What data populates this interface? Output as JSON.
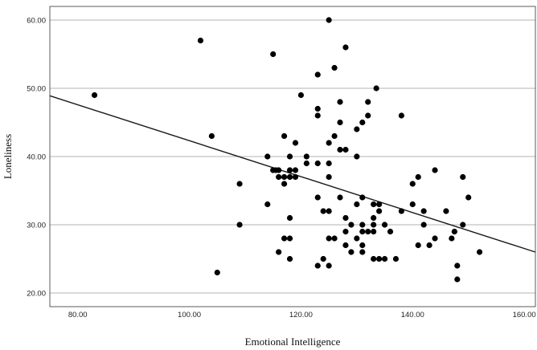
{
  "chart_data": {
    "type": "scatter",
    "title": "",
    "xlabel": "Emotional Intelligence",
    "ylabel": "Loneliness",
    "xlim": [
      75,
      162
    ],
    "ylim": [
      18,
      62
    ],
    "xticks": [
      80,
      100,
      120,
      140,
      160
    ],
    "yticks": [
      20,
      30,
      40,
      50,
      60
    ],
    "xtick_labels": [
      "80.00",
      "100.00",
      "120.00",
      "140.00",
      "160.00"
    ],
    "ytick_labels": [
      "20.00",
      "30.00",
      "40.00",
      "50.00",
      "60.00"
    ],
    "grid": "horizontal",
    "point_color": "#000000",
    "line_color": "#1a1a1a",
    "fit_line": {
      "x": [
        75,
        162
      ],
      "y": [
        48.9,
        26.0
      ]
    },
    "points": [
      {
        "x": 83,
        "y": 49
      },
      {
        "x": 102,
        "y": 57
      },
      {
        "x": 104,
        "y": 43
      },
      {
        "x": 105,
        "y": 23
      },
      {
        "x": 109,
        "y": 36
      },
      {
        "x": 109,
        "y": 30
      },
      {
        "x": 114,
        "y": 40
      },
      {
        "x": 114,
        "y": 33
      },
      {
        "x": 115,
        "y": 55
      },
      {
        "x": 115,
        "y": 38
      },
      {
        "x": 115.5,
        "y": 38
      },
      {
        "x": 116,
        "y": 38
      },
      {
        "x": 116,
        "y": 37
      },
      {
        "x": 116,
        "y": 26
      },
      {
        "x": 117,
        "y": 43
      },
      {
        "x": 117,
        "y": 37
      },
      {
        "x": 117,
        "y": 36
      },
      {
        "x": 117,
        "y": 28
      },
      {
        "x": 118,
        "y": 40
      },
      {
        "x": 118,
        "y": 38
      },
      {
        "x": 118,
        "y": 37
      },
      {
        "x": 118,
        "y": 31
      },
      {
        "x": 118,
        "y": 28
      },
      {
        "x": 118,
        "y": 25
      },
      {
        "x": 119,
        "y": 42
      },
      {
        "x": 119,
        "y": 38
      },
      {
        "x": 119,
        "y": 37
      },
      {
        "x": 120,
        "y": 49
      },
      {
        "x": 121,
        "y": 40
      },
      {
        "x": 121,
        "y": 39
      },
      {
        "x": 123,
        "y": 52
      },
      {
        "x": 123,
        "y": 47
      },
      {
        "x": 123,
        "y": 46
      },
      {
        "x": 123,
        "y": 39
      },
      {
        "x": 123,
        "y": 34
      },
      {
        "x": 123,
        "y": 24
      },
      {
        "x": 124,
        "y": 32
      },
      {
        "x": 124,
        "y": 25
      },
      {
        "x": 125,
        "y": 60
      },
      {
        "x": 125,
        "y": 42
      },
      {
        "x": 125,
        "y": 39
      },
      {
        "x": 125,
        "y": 37
      },
      {
        "x": 125,
        "y": 32
      },
      {
        "x": 125,
        "y": 28
      },
      {
        "x": 125,
        "y": 24
      },
      {
        "x": 126,
        "y": 53
      },
      {
        "x": 126,
        "y": 43
      },
      {
        "x": 126,
        "y": 28
      },
      {
        "x": 127,
        "y": 48
      },
      {
        "x": 127,
        "y": 45
      },
      {
        "x": 127,
        "y": 41
      },
      {
        "x": 127,
        "y": 34
      },
      {
        "x": 128,
        "y": 56
      },
      {
        "x": 128,
        "y": 41
      },
      {
        "x": 128,
        "y": 31
      },
      {
        "x": 128,
        "y": 29
      },
      {
        "x": 128,
        "y": 27
      },
      {
        "x": 129,
        "y": 30
      },
      {
        "x": 129,
        "y": 26
      },
      {
        "x": 130,
        "y": 44
      },
      {
        "x": 130,
        "y": 40
      },
      {
        "x": 130,
        "y": 33
      },
      {
        "x": 130,
        "y": 28
      },
      {
        "x": 131,
        "y": 45
      },
      {
        "x": 131,
        "y": 34
      },
      {
        "x": 131,
        "y": 30
      },
      {
        "x": 131,
        "y": 29
      },
      {
        "x": 131,
        "y": 27
      },
      {
        "x": 131,
        "y": 26
      },
      {
        "x": 132,
        "y": 48
      },
      {
        "x": 132,
        "y": 46
      },
      {
        "x": 132,
        "y": 29
      },
      {
        "x": 133,
        "y": 33
      },
      {
        "x": 133,
        "y": 31
      },
      {
        "x": 133,
        "y": 30
      },
      {
        "x": 133,
        "y": 29
      },
      {
        "x": 133,
        "y": 25
      },
      {
        "x": 133.5,
        "y": 50
      },
      {
        "x": 134,
        "y": 33
      },
      {
        "x": 134,
        "y": 32
      },
      {
        "x": 134,
        "y": 25
      },
      {
        "x": 135,
        "y": 30
      },
      {
        "x": 135,
        "y": 25
      },
      {
        "x": 136,
        "y": 29
      },
      {
        "x": 137,
        "y": 25
      },
      {
        "x": 138,
        "y": 46
      },
      {
        "x": 138,
        "y": 32
      },
      {
        "x": 140,
        "y": 36
      },
      {
        "x": 140,
        "y": 33
      },
      {
        "x": 141,
        "y": 37
      },
      {
        "x": 141,
        "y": 27
      },
      {
        "x": 142,
        "y": 32
      },
      {
        "x": 142,
        "y": 30
      },
      {
        "x": 143,
        "y": 27
      },
      {
        "x": 144,
        "y": 38
      },
      {
        "x": 144,
        "y": 28
      },
      {
        "x": 146,
        "y": 32
      },
      {
        "x": 147,
        "y": 28
      },
      {
        "x": 147.5,
        "y": 29
      },
      {
        "x": 148,
        "y": 24
      },
      {
        "x": 148,
        "y": 22
      },
      {
        "x": 149,
        "y": 37
      },
      {
        "x": 149,
        "y": 30
      },
      {
        "x": 150,
        "y": 34
      },
      {
        "x": 152,
        "y": 26
      }
    ]
  }
}
